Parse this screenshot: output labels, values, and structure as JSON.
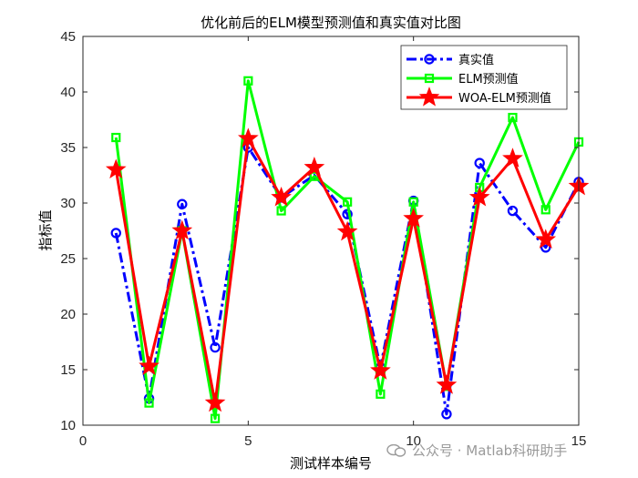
{
  "chart_data": {
    "type": "line",
    "title": "优化前后的ELM模型预测值和真实值对比图",
    "xlabel": "测试样本编号",
    "ylabel": "指标值",
    "xlim": [
      0,
      15
    ],
    "ylim": [
      10,
      45
    ],
    "xticks": [
      0,
      5,
      10,
      15
    ],
    "yticks": [
      10,
      15,
      20,
      25,
      30,
      35,
      40,
      45
    ],
    "grid": false,
    "legend_position": "top-right",
    "x": [
      1,
      2,
      3,
      4,
      5,
      6,
      7,
      8,
      9,
      10,
      11,
      12,
      13,
      14,
      15
    ],
    "series": [
      {
        "name": "真实值",
        "color": "#0000ff",
        "line_style": "dash-dot",
        "marker": "circle",
        "values": [
          27.3,
          12.4,
          29.9,
          17.0,
          35.0,
          30.5,
          32.5,
          29.0,
          15.2,
          30.2,
          11.0,
          33.6,
          29.3,
          26.0,
          31.9
        ]
      },
      {
        "name": "ELM预测值",
        "color": "#00ff00",
        "line_style": "solid",
        "marker": "square",
        "values": [
          35.9,
          12.0,
          27.5,
          10.6,
          41.0,
          29.3,
          32.4,
          30.1,
          12.8,
          30.1,
          13.5,
          31.4,
          37.7,
          29.4,
          35.5
        ]
      },
      {
        "name": "WOA-ELM预测值",
        "color": "#ff0000",
        "line_style": "solid",
        "marker": "star",
        "values": [
          33.0,
          15.3,
          27.5,
          12.0,
          35.8,
          30.5,
          33.2,
          27.4,
          14.9,
          28.6,
          13.6,
          30.5,
          34.0,
          26.7,
          31.5
        ]
      }
    ]
  },
  "watermark": {
    "text": "公众号 · Matlab科研助手"
  }
}
